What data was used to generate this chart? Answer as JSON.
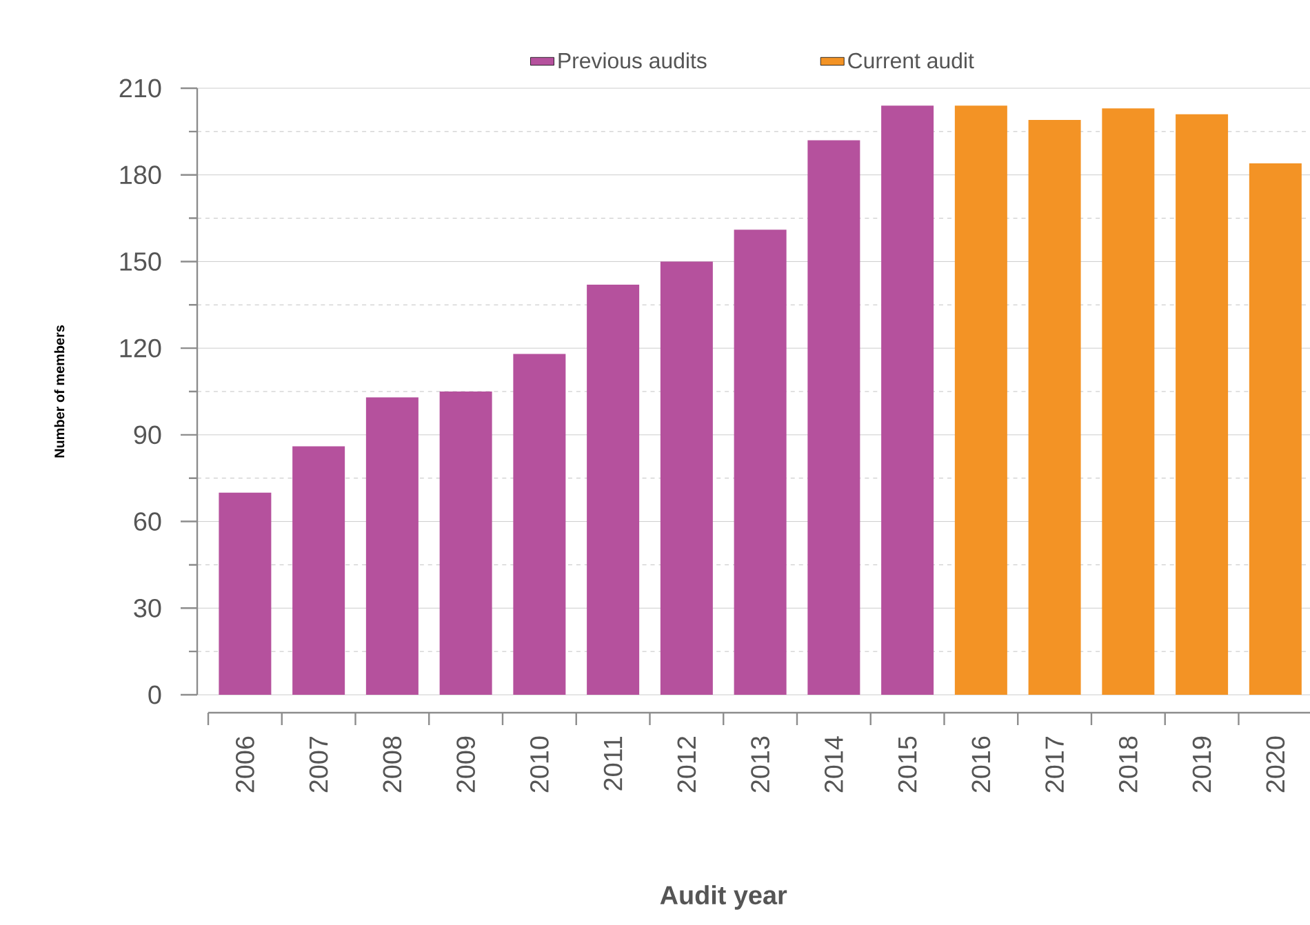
{
  "chart_data": {
    "type": "bar",
    "categories": [
      "2006",
      "2007",
      "2008",
      "2009",
      "2010",
      "2011",
      "2012",
      "2013",
      "2014",
      "2015",
      "2016",
      "2017",
      "2018",
      "2019",
      "2020"
    ],
    "series": [
      {
        "name": "Previous audits",
        "color": "#b5519d",
        "values": [
          70,
          86,
          103,
          105,
          118,
          142,
          150,
          161,
          192,
          204,
          null,
          null,
          null,
          null,
          null
        ]
      },
      {
        "name": "Current audit",
        "color": "#f39325",
        "values": [
          null,
          null,
          null,
          null,
          null,
          null,
          null,
          null,
          null,
          null,
          204,
          199,
          203,
          201,
          184
        ]
      }
    ],
    "xlabel": "Audit year",
    "ylabel": "Number of members",
    "ylim": [
      0,
      210
    ],
    "yticks": [
      0,
      {
        "value": 15,
        "label": null
      },
      30,
      {
        "value": 45,
        "label": null
      },
      60,
      {
        "value": 75,
        "label": null
      },
      90,
      {
        "value": 105,
        "label": null
      },
      120,
      {
        "value": 135,
        "label": null
      },
      150,
      {
        "value": 165,
        "label": null
      },
      180,
      {
        "value": 195,
        "label": null
      },
      210
    ],
    "grid": "y",
    "legend": "top"
  }
}
